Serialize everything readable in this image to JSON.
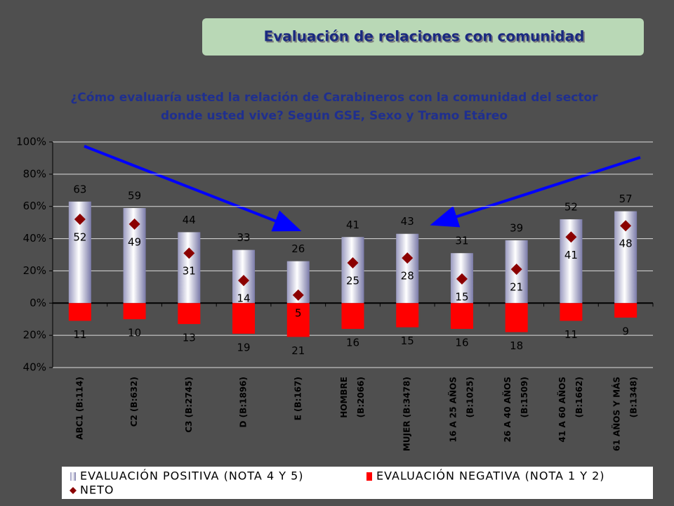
{
  "chart_data": {
    "type": "bar",
    "header": "Evaluación de relaciones con comunidad",
    "title": "¿Cómo evaluaría usted la relación de Carabineros con la comunidad del sector donde usted vive? Según GSE, Sexo y Tramo Etáreo",
    "categories": [
      [
        "ABC1 (B:114)"
      ],
      [
        "C2 (B:632)"
      ],
      [
        "C3 (B:2745)"
      ],
      [
        "D (B:1896)"
      ],
      [
        "E (B:167)"
      ],
      [
        "HOMBRE",
        "(B:2066)"
      ],
      [
        "MUJER (B:3478)"
      ],
      [
        "16 A 25 AÑOS",
        "(B:1025)"
      ],
      [
        "26 A 40 AÑOS",
        "(B:1509)"
      ],
      [
        "41 A 60 AÑOS",
        "(B:1662)"
      ],
      [
        "61 AÑOS Y MÁS",
        "(B:1348)"
      ]
    ],
    "series": [
      {
        "name": "EVALUACIÓN POSITIVA (NOTA 4 Y 5)",
        "color": "#c8c8e0",
        "values": [
          63,
          59,
          44,
          33,
          26,
          41,
          43,
          31,
          39,
          52,
          57
        ]
      },
      {
        "name": "EVALUACIÓN NEGATIVA (NOTA 1 Y 2)",
        "color": "#ff0000",
        "values": [
          -11,
          -10,
          -13,
          -19,
          -21,
          -16,
          -15,
          -16,
          -18,
          -11,
          -9
        ],
        "value_labels": [
          "11",
          "10",
          "13",
          "19",
          "21",
          "16",
          "15",
          "16",
          "18",
          "11",
          "9"
        ]
      },
      {
        "name": "NETO",
        "type": "scatter",
        "color": "#8b0000",
        "values": [
          52,
          49,
          31,
          14,
          5,
          25,
          28,
          15,
          21,
          41,
          48
        ]
      }
    ],
    "ylim": [
      -40,
      100
    ],
    "yticks": [
      {
        "value": -40,
        "label": "40%"
      },
      {
        "value": -20,
        "label": "20%"
      },
      {
        "value": 0,
        "label": "0%"
      },
      {
        "value": 20,
        "label": "20%"
      },
      {
        "value": 40,
        "label": "40%"
      },
      {
        "value": 60,
        "label": "60%"
      },
      {
        "value": 80,
        "label": "80%"
      },
      {
        "value": 100,
        "label": "100%"
      }
    ],
    "grid": true
  }
}
